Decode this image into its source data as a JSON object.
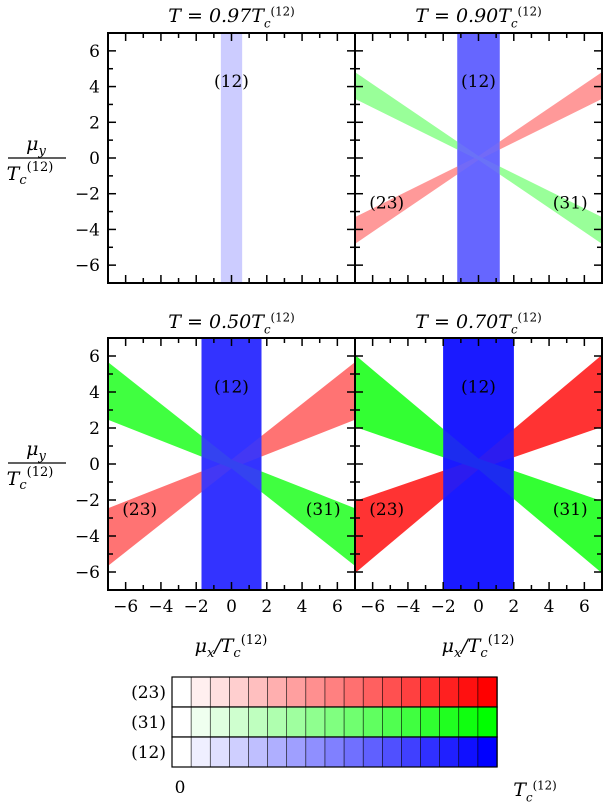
{
  "chart_data": {
    "type": "heatmap",
    "description_free": true,
    "grid": false,
    "xlim": [
      -7,
      7
    ],
    "ylim": [
      -7,
      7
    ],
    "xticks": [
      -6,
      -4,
      -2,
      0,
      2,
      4,
      6
    ],
    "yticks": [
      -6,
      -4,
      -2,
      0,
      2,
      4,
      6
    ],
    "xtick_labels": [
      "−6",
      "−4",
      "−2",
      "0",
      "2",
      "4",
      "6"
    ],
    "ytick_labels": [
      "−6",
      "−4",
      "−2",
      "0",
      "2",
      "4",
      "6"
    ],
    "xlabel": "μx/Tc(12)",
    "ylabel": "μy/Tc(12)",
    "colors": {
      "(12)": "#0000ff",
      "(31)": "#00ff00",
      "(23)": "#ff0000",
      "frame": "#000000"
    },
    "panels": [
      {
        "title": "T = 0.97Tc(12)",
        "phases": [
          {
            "name": "(12)",
            "slope": 0,
            "halfwidth": 0.6,
            "intensity": 0.2,
            "label_x": 0,
            "label_y": 4.3
          }
        ]
      },
      {
        "title": "T = 0.90Tc(12)",
        "phases": [
          {
            "name": "(12)",
            "slope": 0,
            "halfwidth": 1.2,
            "intensity": 0.6,
            "label_x": 0,
            "label_y": 4.3
          },
          {
            "name": "(23)",
            "slope": 0.58,
            "halfwidth": 0.75,
            "intensity": 0.4,
            "label_x": -5.2,
            "label_y": -2.5
          },
          {
            "name": "(31)",
            "slope": -0.58,
            "halfwidth": 0.75,
            "intensity": 0.4,
            "label_x": 5.2,
            "label_y": -2.5
          }
        ]
      },
      {
        "title": "T = 0.50Tc(12)",
        "phases": [
          {
            "name": "(12)",
            "slope": 0,
            "halfwidth": 1.7,
            "intensity": 0.8,
            "label_x": 0,
            "label_y": 4.3
          },
          {
            "name": "(23)",
            "slope": 0.58,
            "halfwidth": 1.6,
            "intensity": 0.55,
            "label_x": -5.2,
            "label_y": -2.5
          },
          {
            "name": "(31)",
            "slope": -0.58,
            "halfwidth": 1.6,
            "intensity": 0.75,
            "label_x": 5.2,
            "label_y": -2.5
          }
        ]
      },
      {
        "title": "T = 0.70Tc(12)",
        "phases": [
          {
            "name": "(12)",
            "slope": 0,
            "halfwidth": 2.0,
            "intensity": 0.9,
            "label_x": 0,
            "label_y": 4.3
          },
          {
            "name": "(23)",
            "slope": 0.58,
            "halfwidth": 2.0,
            "intensity": 0.8,
            "label_x": -5.2,
            "label_y": -2.5
          },
          {
            "name": "(31)",
            "slope": -0.58,
            "halfwidth": 2.0,
            "intensity": 0.8,
            "label_x": 5.2,
            "label_y": -2.5
          }
        ]
      }
    ],
    "colorbar": {
      "rows": [
        "(23)",
        "(31)",
        "(12)"
      ],
      "steps": 17,
      "min_label": "0",
      "max_label": "Tc(12)"
    }
  }
}
